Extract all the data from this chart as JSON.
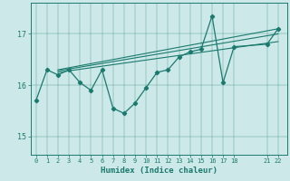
{
  "xlabel": "Humidex (Indice chaleur)",
  "bg_color": "#cce8e8",
  "line_color": "#1a7a6e",
  "xticks": [
    0,
    1,
    2,
    3,
    4,
    5,
    6,
    7,
    8,
    9,
    10,
    11,
    12,
    13,
    14,
    15,
    16,
    17,
    18,
    21,
    22
  ],
  "yticks": [
    15,
    16,
    17
  ],
  "xlim": [
    -0.5,
    22.8
  ],
  "ylim": [
    14.65,
    17.6
  ],
  "x_data": [
    0,
    1,
    2,
    3,
    4,
    5,
    6,
    7,
    8,
    9,
    10,
    11,
    12,
    13,
    14,
    15,
    16,
    17,
    18,
    21,
    22
  ],
  "y_data": [
    15.7,
    16.3,
    16.2,
    16.3,
    16.05,
    15.9,
    16.3,
    15.55,
    15.45,
    15.65,
    15.95,
    16.25,
    16.3,
    16.55,
    16.65,
    16.7,
    17.35,
    16.05,
    16.75,
    16.8,
    17.1
  ],
  "trend_lines": [
    {
      "x": [
        2,
        22
      ],
      "y": [
        16.25,
        16.85
      ]
    },
    {
      "x": [
        2,
        22
      ],
      "y": [
        16.28,
        17.0
      ]
    },
    {
      "x": [
        2,
        22
      ],
      "y": [
        16.3,
        17.1
      ]
    }
  ]
}
